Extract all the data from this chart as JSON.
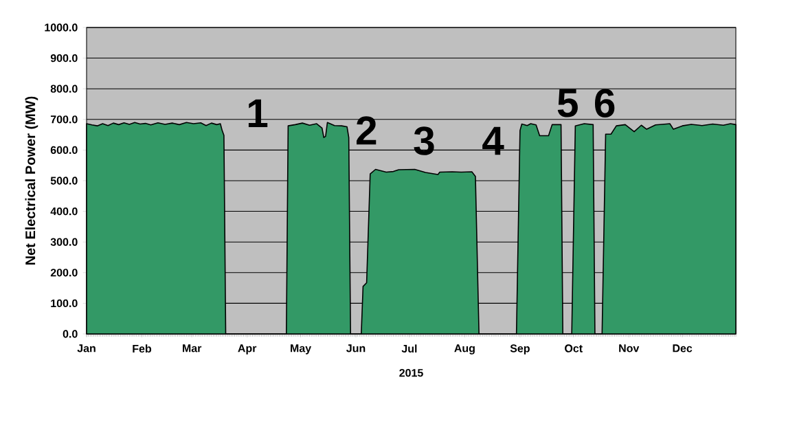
{
  "chart_data": {
    "type": "area",
    "xlabel": "2015",
    "ylabel": "Net Electrical Power (MW)",
    "x": [
      "2015-01-01",
      "2015-01-04",
      "2015-01-07",
      "2015-01-10",
      "2015-01-13",
      "2015-01-16",
      "2015-01-19",
      "2015-01-22",
      "2015-01-25",
      "2015-01-28",
      "2015-01-31",
      "2015-02-03",
      "2015-02-06",
      "2015-02-10",
      "2015-02-14",
      "2015-02-18",
      "2015-02-22",
      "2015-02-26",
      "2015-03-02",
      "2015-03-06",
      "2015-03-09",
      "2015-03-12",
      "2015-03-15",
      "2015-03-17",
      "2015-03-18",
      "2015-03-19",
      "2015-03-20",
      "2015-04-23",
      "2015-04-24",
      "2015-04-28",
      "2015-05-02",
      "2015-05-06",
      "2015-05-10",
      "2015-05-13",
      "2015-05-14",
      "2015-05-15",
      "2015-05-16",
      "2015-05-20",
      "2015-05-24",
      "2015-05-27",
      "2015-05-28",
      "2015-05-29",
      "2015-06-04",
      "2015-06-05",
      "2015-06-07",
      "2015-06-09",
      "2015-06-12",
      "2015-06-18",
      "2015-06-22",
      "2015-06-25",
      "2015-07-04",
      "2015-07-10",
      "2015-07-17",
      "2015-07-18",
      "2015-07-25",
      "2015-07-30",
      "2015-08-05",
      "2015-08-07",
      "2015-08-09",
      "2015-08-30",
      "2015-09-01",
      "2015-09-02",
      "2015-09-05",
      "2015-09-07",
      "2015-09-10",
      "2015-09-12",
      "2015-09-17",
      "2015-09-19",
      "2015-09-24",
      "2015-09-25",
      "2015-09-30",
      "2015-10-02",
      "2015-10-07",
      "2015-10-12",
      "2015-10-13",
      "2015-10-17",
      "2015-10-19",
      "2015-10-22",
      "2015-10-25",
      "2015-10-30",
      "2015-11-04",
      "2015-11-08",
      "2015-11-11",
      "2015-11-16",
      "2015-11-22",
      "2015-11-24",
      "2015-11-26",
      "2015-12-01",
      "2015-12-06",
      "2015-12-12",
      "2015-12-18",
      "2015-12-24",
      "2015-12-28",
      "2015-12-31"
    ],
    "values": [
      686,
      682,
      679,
      686,
      680,
      688,
      683,
      689,
      684,
      690,
      685,
      687,
      682,
      689,
      684,
      688,
      683,
      690,
      686,
      689,
      680,
      688,
      683,
      686,
      664,
      648,
      0,
      0,
      679,
      683,
      688,
      681,
      686,
      672,
      641,
      645,
      690,
      680,
      679,
      676,
      641,
      0,
      0,
      155,
      167,
      522,
      537,
      528,
      530,
      536,
      537,
      527,
      520,
      528,
      529,
      528,
      529,
      514,
      0,
      0,
      664,
      685,
      680,
      686,
      682,
      647,
      647,
      683,
      683,
      0,
      0,
      679,
      686,
      683,
      0,
      0,
      652,
      652,
      679,
      683,
      660,
      681,
      668,
      682,
      685,
      686,
      668,
      679,
      684,
      680,
      685,
      681,
      686,
      683
    ],
    "color": "#339966",
    "xlim": [
      "2015-01-01",
      "2015-12-31"
    ],
    "xticks": [
      {
        "value": "2015-01-01",
        "label": "Jan"
      },
      {
        "value": "2015-02-01",
        "label": "Feb"
      },
      {
        "value": "2015-03-01",
        "label": "Mar"
      },
      {
        "value": "2015-04-01",
        "label": "Apr"
      },
      {
        "value": "2015-05-01",
        "label": "May"
      },
      {
        "value": "2015-06-01",
        "label": "Jun"
      },
      {
        "value": "2015-07-01",
        "label": "Jul"
      },
      {
        "value": "2015-08-01",
        "label": "Aug"
      },
      {
        "value": "2015-09-01",
        "label": "Sep"
      },
      {
        "value": "2015-10-01",
        "label": "Oct"
      },
      {
        "value": "2015-11-01",
        "label": "Nov"
      },
      {
        "value": "2015-12-01",
        "label": "Dec"
      }
    ],
    "ylim": [
      0,
      1000
    ],
    "yticks": [
      {
        "value": 0,
        "label": "0.0"
      },
      {
        "value": 100,
        "label": "100.0"
      },
      {
        "value": 200,
        "label": "200.0"
      },
      {
        "value": 300,
        "label": "300.0"
      },
      {
        "value": 400,
        "label": "400.0"
      },
      {
        "value": 500,
        "label": "500.0"
      },
      {
        "value": 600,
        "label": "600.0"
      },
      {
        "value": 700,
        "label": "700.0"
      },
      {
        "value": 800,
        "label": "800.0"
      },
      {
        "value": 900,
        "label": "900.0"
      },
      {
        "value": 1000,
        "label": "1000.0"
      }
    ],
    "grid": "y",
    "annotations": [
      "1",
      "2",
      "3",
      "4",
      "5",
      "6"
    ]
  }
}
